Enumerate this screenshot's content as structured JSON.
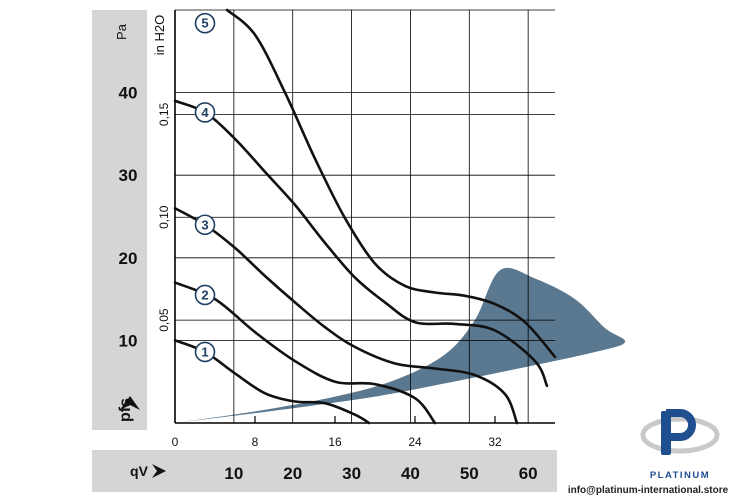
{
  "chart_data": {
    "type": "line",
    "x_axis_cfm": {
      "ticks": [
        0,
        8,
        16,
        24,
        32
      ],
      "range": [
        0,
        38
      ]
    },
    "x_axis_m3h": {
      "label": "qV",
      "ticks": [
        10,
        20,
        30,
        40,
        50,
        60
      ],
      "per_cfm": 1.699
    },
    "y_axis_pa": {
      "label": "pfs",
      "unit": "Pa",
      "ticks": [
        10,
        20,
        30,
        40
      ],
      "range": [
        0,
        50
      ]
    },
    "y_axis_inh2o": {
      "unit": "in H2O",
      "ticks": [
        "0,05",
        "0,10",
        "0,15"
      ],
      "values": [
        0.05,
        0.1,
        0.15
      ],
      "pa_per_unit": 249.1
    },
    "series": [
      {
        "name": "1",
        "x": [
          0,
          3,
          6,
          9,
          12,
          15,
          18,
          19.4
        ],
        "y": [
          10,
          8.6,
          6,
          3.6,
          2.6,
          2.4,
          1.0,
          0
        ]
      },
      {
        "name": "2",
        "x": [
          0,
          4,
          8,
          12,
          16,
          20,
          24,
          26
        ],
        "y": [
          17,
          15,
          11,
          7.5,
          5,
          4.7,
          3.0,
          0
        ]
      },
      {
        "name": "3",
        "x": [
          0,
          3,
          6,
          9,
          12,
          15,
          18,
          22,
          26,
          30,
          33,
          34.2
        ],
        "y": [
          26,
          24,
          21.2,
          17.8,
          14.6,
          11.6,
          9.2,
          7.2,
          6.6,
          5.8,
          3.5,
          0
        ]
      },
      {
        "name": "4",
        "x": [
          0,
          3,
          6,
          9,
          12,
          15,
          18,
          21,
          24,
          28,
          32,
          36,
          37.2
        ],
        "y": [
          39,
          37.6,
          34.4,
          30.4,
          26.4,
          21.8,
          17.6,
          14.6,
          12.2,
          12.0,
          11.2,
          7.5,
          4.5
        ]
      },
      {
        "name": "5",
        "x": [
          5.2,
          8,
          11,
          14,
          17,
          20,
          23,
          26,
          29,
          32,
          35,
          38
        ],
        "y": [
          50,
          47,
          40,
          32,
          24.8,
          19.3,
          16.6,
          15.8,
          15.4,
          14.4,
          12.2,
          8.0
        ]
      }
    ],
    "operating_region": {
      "color": "#5a7890",
      "outline": [
        [
          0,
          0
        ],
        [
          8,
          1.4
        ],
        [
          16,
          3.2
        ],
        [
          22,
          5.2
        ],
        [
          27,
          8.3
        ],
        [
          30,
          12.5
        ],
        [
          32.5,
          18.5
        ],
        [
          36,
          17.5
        ],
        [
          40,
          15
        ],
        [
          43,
          11.5
        ],
        [
          45,
          9.8
        ],
        [
          42,
          8.6
        ],
        [
          34,
          6.5
        ],
        [
          27,
          4.8
        ],
        [
          20,
          3.2
        ],
        [
          10,
          1.5
        ],
        [
          0,
          0
        ]
      ]
    }
  },
  "watermark": {
    "brand": "PLATINUM",
    "url": "info@platinum-international.store",
    "colors": {
      "blue": "#1f4f8f",
      "grey": "#c9c9c9"
    }
  },
  "colors": {
    "band": "#d5d5d5",
    "grid": "#000000",
    "curve": "#111111"
  }
}
